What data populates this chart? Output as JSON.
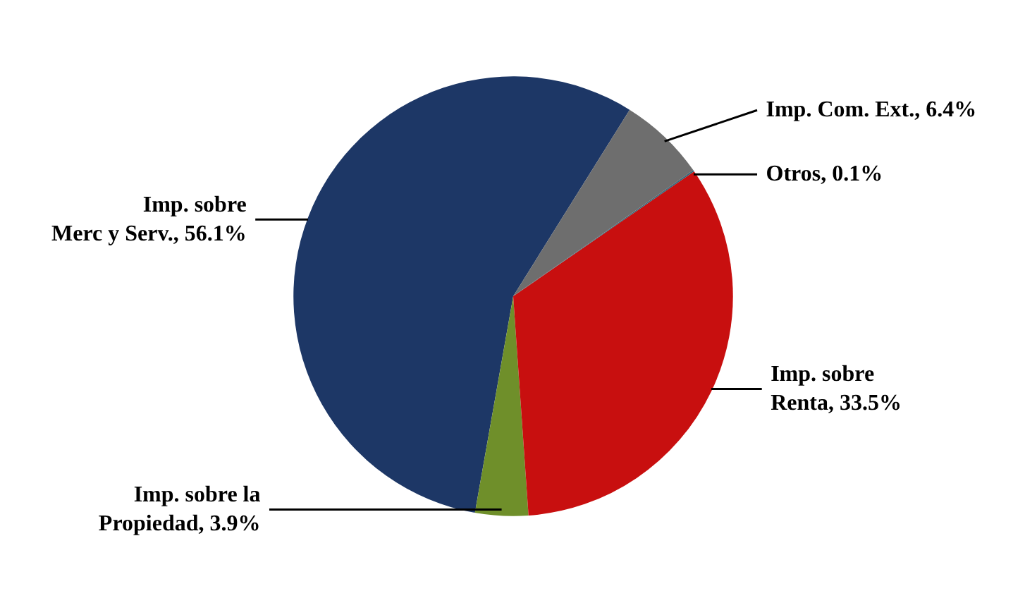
{
  "chart_data": {
    "type": "pie",
    "categories": [
      "Imp. sobre Merc y Serv.",
      "Imp. sobre la Propiedad",
      "Imp. sobre Renta",
      "Otros",
      "Imp. Com. Ext."
    ],
    "values": [
      56.1,
      3.9,
      33.5,
      0.1,
      6.4
    ],
    "value_labels": [
      "56.1%",
      "3.9%",
      "33.5%",
      "0.1%",
      "6.4%"
    ],
    "colors": [
      "#1d3766",
      "#6f8f2a",
      "#c80f0f",
      "#2f6478",
      "#6e6e6e"
    ]
  }
}
